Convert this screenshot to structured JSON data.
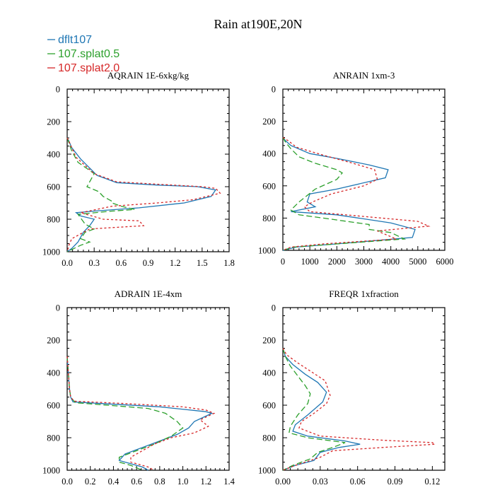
{
  "figure_title": "Rain at190E,20N",
  "chart_data": [
    {
      "type": "line",
      "title": "AQRAIN  1E-6xkg/kg",
      "xlabel": "",
      "ylabel": "",
      "xlim": [
        0,
        1.8
      ],
      "ylim": [
        1000,
        0
      ],
      "xticks": [
        "0.0",
        "0.3",
        "0.6",
        "0.9",
        "1.2",
        "1.5",
        "1.8"
      ],
      "yticks": [
        "0",
        "200",
        "400",
        "600",
        "800",
        "1000"
      ],
      "series": [
        {
          "name": "dflt107",
          "color": "#1f77b4",
          "dash": "solid",
          "points": [
            [
              0,
              300
            ],
            [
              0.02,
              320
            ],
            [
              0.05,
              360
            ],
            [
              0.15,
              430
            ],
            [
              0.33,
              530
            ],
            [
              0.55,
              575
            ],
            [
              1.0,
              590
            ],
            [
              1.45,
              600
            ],
            [
              1.65,
              620
            ],
            [
              1.6,
              660
            ],
            [
              1.3,
              700
            ],
            [
              0.8,
              730
            ],
            [
              0.3,
              750
            ],
            [
              0.1,
              760
            ],
            [
              0.15,
              780
            ],
            [
              0.3,
              800
            ],
            [
              0.25,
              840
            ],
            [
              0.18,
              880
            ],
            [
              0.12,
              940
            ],
            [
              0.05,
              980
            ],
            [
              0,
              1000
            ]
          ]
        },
        {
          "name": "107.splat0.5",
          "color": "#2ca02c",
          "dash": "dashed",
          "points": [
            [
              0,
              300
            ],
            [
              0.02,
              330
            ],
            [
              0.05,
              380
            ],
            [
              0.12,
              450
            ],
            [
              0.25,
              500
            ],
            [
              0.3,
              520
            ],
            [
              0.22,
              600
            ],
            [
              0.35,
              630
            ],
            [
              0.4,
              660
            ],
            [
              0.5,
              690
            ],
            [
              0.5,
              700
            ],
            [
              0.6,
              720
            ],
            [
              0.75,
              740
            ],
            [
              0.5,
              750
            ],
            [
              0.12,
              770
            ],
            [
              0.2,
              830
            ],
            [
              0.3,
              860
            ],
            [
              0.2,
              880
            ],
            [
              0.15,
              920
            ],
            [
              0.25,
              940
            ],
            [
              0.15,
              960
            ],
            [
              0,
              1000
            ]
          ]
        },
        {
          "name": "107.splat2.0",
          "color": "#d62728",
          "dash": "dotted",
          "points": [
            [
              0,
              300
            ],
            [
              0.02,
              320
            ],
            [
              0.05,
              360
            ],
            [
              0.1,
              420
            ],
            [
              0.3,
              520
            ],
            [
              0.55,
              570
            ],
            [
              1.0,
              585
            ],
            [
              1.5,
              600
            ],
            [
              1.65,
              610
            ],
            [
              1.7,
              640
            ],
            [
              1.4,
              680
            ],
            [
              1.0,
              700
            ],
            [
              0.5,
              720
            ],
            [
              0.15,
              760
            ],
            [
              0.4,
              800
            ],
            [
              0.8,
              810
            ],
            [
              0.85,
              840
            ],
            [
              0.25,
              860
            ],
            [
              0.05,
              920
            ],
            [
              0.02,
              960
            ],
            [
              0,
              1000
            ]
          ]
        }
      ]
    },
    {
      "type": "line",
      "title": "ANRAIN  1xm-3",
      "xlabel": "",
      "ylabel": "",
      "xlim": [
        0,
        6000
      ],
      "ylim": [
        1000,
        0
      ],
      "xticks": [
        "0",
        "1000",
        "2000",
        "3000",
        "4000",
        "5000",
        "6000"
      ],
      "yticks": [
        "0",
        "200",
        "400",
        "600",
        "800",
        "1000"
      ],
      "series": [
        {
          "name": "dflt107",
          "color": "#1f77b4",
          "dash": "solid",
          "points": [
            [
              0,
              300
            ],
            [
              100,
              320
            ],
            [
              300,
              350
            ],
            [
              1000,
              400
            ],
            [
              2000,
              430
            ],
            [
              3200,
              470
            ],
            [
              3900,
              500
            ],
            [
              3800,
              550
            ],
            [
              2000,
              620
            ],
            [
              1000,
              650
            ],
            [
              900,
              700
            ],
            [
              1200,
              730
            ],
            [
              300,
              760
            ],
            [
              2000,
              780
            ],
            [
              4000,
              830
            ],
            [
              4900,
              870
            ],
            [
              4800,
              920
            ],
            [
              2000,
              960
            ],
            [
              500,
              980
            ],
            [
              0,
              1000
            ]
          ]
        },
        {
          "name": "107.splat0.5",
          "color": "#2ca02c",
          "dash": "dashed",
          "points": [
            [
              0,
              300
            ],
            [
              100,
              330
            ],
            [
              300,
              370
            ],
            [
              600,
              420
            ],
            [
              1200,
              460
            ],
            [
              2000,
              500
            ],
            [
              2200,
              520
            ],
            [
              2000,
              560
            ],
            [
              1200,
              620
            ],
            [
              600,
              700
            ],
            [
              300,
              750
            ],
            [
              600,
              780
            ],
            [
              1500,
              800
            ],
            [
              3200,
              840
            ],
            [
              3200,
              870
            ],
            [
              4000,
              890
            ],
            [
              4500,
              930
            ],
            [
              2000,
              960
            ],
            [
              400,
              980
            ],
            [
              0,
              1000
            ]
          ]
        },
        {
          "name": "107.splat2.0",
          "color": "#d62728",
          "dash": "dotted",
          "points": [
            [
              0,
              300
            ],
            [
              200,
              320
            ],
            [
              500,
              360
            ],
            [
              1500,
              410
            ],
            [
              2600,
              460
            ],
            [
              3400,
              500
            ],
            [
              3500,
              560
            ],
            [
              3000,
              600
            ],
            [
              1800,
              650
            ],
            [
              1100,
              700
            ],
            [
              800,
              730
            ],
            [
              1000,
              760
            ],
            [
              3000,
              790
            ],
            [
              5000,
              820
            ],
            [
              5400,
              850
            ],
            [
              3500,
              880
            ],
            [
              4200,
              930
            ],
            [
              1500,
              960
            ],
            [
              300,
              980
            ],
            [
              0,
              1000
            ]
          ]
        }
      ]
    },
    {
      "type": "line",
      "title": "ADRAIN  1E-4xm",
      "xlabel": "",
      "ylabel": "",
      "xlim": [
        0,
        1.4
      ],
      "ylim": [
        1000,
        0
      ],
      "xticks": [
        "0.0",
        "0.2",
        "0.4",
        "0.6",
        "0.8",
        "1.0",
        "1.2",
        "1.4"
      ],
      "yticks": [
        "0",
        "200",
        "400",
        "600",
        "800",
        "1000"
      ],
      "series": [
        {
          "name": "dflt107",
          "color": "#1f77b4",
          "dash": "solid",
          "points": [
            [
              0,
              300
            ],
            [
              0.01,
              400
            ],
            [
              0.02,
              500
            ],
            [
              0.03,
              550
            ],
            [
              0.05,
              580
            ],
            [
              0.3,
              590
            ],
            [
              0.8,
              610
            ],
            [
              1.2,
              640
            ],
            [
              1.25,
              650
            ],
            [
              1.1,
              700
            ],
            [
              1.05,
              740
            ],
            [
              0.95,
              780
            ],
            [
              0.8,
              820
            ],
            [
              0.65,
              860
            ],
            [
              0.5,
              900
            ],
            [
              0.45,
              940
            ],
            [
              0.55,
              960
            ],
            [
              0.65,
              980
            ],
            [
              0.7,
              1000
            ]
          ]
        },
        {
          "name": "107.splat0.5",
          "color": "#2ca02c",
          "dash": "dashed",
          "points": [
            [
              0,
              300
            ],
            [
              0.01,
              400
            ],
            [
              0.02,
              500
            ],
            [
              0.03,
              550
            ],
            [
              0.07,
              585
            ],
            [
              0.35,
              600
            ],
            [
              0.7,
              620
            ],
            [
              0.85,
              650
            ],
            [
              0.95,
              700
            ],
            [
              1.0,
              740
            ],
            [
              0.9,
              790
            ],
            [
              0.75,
              840
            ],
            [
              0.6,
              880
            ],
            [
              0.45,
              920
            ],
            [
              0.45,
              950
            ],
            [
              0.55,
              970
            ],
            [
              0.65,
              1000
            ]
          ]
        },
        {
          "name": "107.splat2.0",
          "color": "#d62728",
          "dash": "dotted",
          "points": [
            [
              0,
              300
            ],
            [
              0.01,
              400
            ],
            [
              0.02,
              500
            ],
            [
              0.03,
              550
            ],
            [
              0.06,
              575
            ],
            [
              0.5,
              590
            ],
            [
              1.0,
              610
            ],
            [
              1.2,
              630
            ],
            [
              1.27,
              650
            ],
            [
              1.15,
              690
            ],
            [
              1.22,
              730
            ],
            [
              1.1,
              770
            ],
            [
              0.9,
              800
            ],
            [
              0.75,
              840
            ],
            [
              0.65,
              880
            ],
            [
              0.55,
              920
            ],
            [
              0.55,
              950
            ],
            [
              0.7,
              980
            ],
            [
              0.75,
              1000
            ]
          ]
        }
      ]
    },
    {
      "type": "line",
      "title": "FREQR  1xfraction",
      "xlabel": "",
      "ylabel": "",
      "xlim": [
        0,
        0.13
      ],
      "ylim": [
        1000,
        0
      ],
      "xticks": [
        "0.00",
        "0.03",
        "0.06",
        "0.09",
        "0.12"
      ],
      "yticks": [
        "0",
        "200",
        "400",
        "600",
        "800",
        "1000"
      ],
      "series": [
        {
          "name": "dflt107",
          "color": "#1f77b4",
          "dash": "solid",
          "points": [
            [
              0,
              250
            ],
            [
              0.002,
              300
            ],
            [
              0.008,
              350
            ],
            [
              0.018,
              410
            ],
            [
              0.028,
              460
            ],
            [
              0.035,
              520
            ],
            [
              0.032,
              580
            ],
            [
              0.02,
              660
            ],
            [
              0.01,
              720
            ],
            [
              0.008,
              760
            ],
            [
              0.02,
              790
            ],
            [
              0.05,
              820
            ],
            [
              0.062,
              840
            ],
            [
              0.045,
              860
            ],
            [
              0.03,
              890
            ],
            [
              0.025,
              940
            ],
            [
              0.01,
              970
            ],
            [
              0,
              1000
            ]
          ]
        },
        {
          "name": "107.splat0.5",
          "color": "#2ca02c",
          "dash": "dashed",
          "points": [
            [
              0,
              250
            ],
            [
              0.002,
              300
            ],
            [
              0.006,
              360
            ],
            [
              0.012,
              420
            ],
            [
              0.018,
              480
            ],
            [
              0.022,
              530
            ],
            [
              0.02,
              590
            ],
            [
              0.012,
              660
            ],
            [
              0.006,
              730
            ],
            [
              0.005,
              770
            ],
            [
              0.02,
              800
            ],
            [
              0.05,
              830
            ],
            [
              0.04,
              860
            ],
            [
              0.028,
              890
            ],
            [
              0.022,
              930
            ],
            [
              0.008,
              970
            ],
            [
              0,
              1000
            ]
          ]
        },
        {
          "name": "107.splat2.0",
          "color": "#d62728",
          "dash": "dotted",
          "points": [
            [
              0,
              250
            ],
            [
              0.003,
              290
            ],
            [
              0.012,
              340
            ],
            [
              0.024,
              400
            ],
            [
              0.034,
              450
            ],
            [
              0.038,
              540
            ],
            [
              0.035,
              590
            ],
            [
              0.025,
              650
            ],
            [
              0.015,
              700
            ],
            [
              0.013,
              740
            ],
            [
              0.03,
              790
            ],
            [
              0.08,
              815
            ],
            [
              0.12,
              830
            ],
            [
              0.122,
              840
            ],
            [
              0.08,
              860
            ],
            [
              0.04,
              880
            ],
            [
              0.03,
              920
            ],
            [
              0.01,
              970
            ],
            [
              0,
              1000
            ]
          ]
        }
      ]
    }
  ],
  "legend": [
    {
      "name": "dflt107",
      "color": "#1f77b4"
    },
    {
      "name": "107.splat0.5",
      "color": "#2ca02c"
    },
    {
      "name": "107.splat2.0",
      "color": "#d62728"
    }
  ]
}
